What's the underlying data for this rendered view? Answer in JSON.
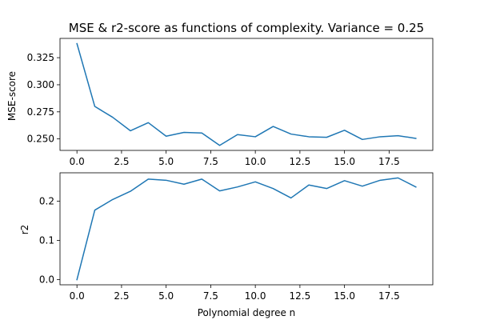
{
  "chart_data": [
    {
      "type": "line",
      "title": "MSE & r2-score as functions of complexity. Variance = 0.25",
      "xlabel": "",
      "ylabel": "MSE-score",
      "xlim": [
        -0.95,
        19.95
      ],
      "ylim": [
        0.2394,
        0.3428
      ],
      "xticks": [
        0.0,
        2.5,
        5.0,
        7.5,
        10.0,
        12.5,
        15.0,
        17.5
      ],
      "xtick_labels": [
        "0.0",
        "2.5",
        "5.0",
        "7.5",
        "10.0",
        "12.5",
        "15.0",
        "17.5"
      ],
      "yticks": [
        0.25,
        0.275,
        0.3,
        0.325
      ],
      "ytick_labels": [
        "0.250",
        "0.275",
        "0.300",
        "0.325"
      ],
      "grid": false,
      "color": "#1f77b4",
      "x": [
        0,
        1,
        2,
        3,
        4,
        5,
        6,
        7,
        8,
        9,
        10,
        11,
        12,
        13,
        14,
        15,
        16,
        17,
        18,
        19
      ],
      "y": [
        0.338,
        0.28,
        0.27,
        0.2575,
        0.265,
        0.2525,
        0.256,
        0.2555,
        0.244,
        0.254,
        0.252,
        0.2615,
        0.2545,
        0.252,
        0.2515,
        0.258,
        0.2495,
        0.252,
        0.253,
        0.2505
      ]
    },
    {
      "type": "line",
      "title": "",
      "xlabel": "Polynomial degree n",
      "ylabel": "r2",
      "xlim": [
        -0.95,
        19.95
      ],
      "ylim": [
        -0.013,
        0.272
      ],
      "xticks": [
        0.0,
        2.5,
        5.0,
        7.5,
        10.0,
        12.5,
        15.0,
        17.5
      ],
      "xtick_labels": [
        "0.0",
        "2.5",
        "5.0",
        "7.5",
        "10.0",
        "12.5",
        "15.0",
        "17.5"
      ],
      "yticks": [
        0.0,
        0.1,
        0.2
      ],
      "ytick_labels": [
        "0.0",
        "0.1",
        "0.2"
      ],
      "grid": false,
      "color": "#1f77b4",
      "x": [
        0,
        1,
        2,
        3,
        4,
        5,
        6,
        7,
        8,
        9,
        10,
        11,
        12,
        13,
        14,
        15,
        16,
        17,
        18,
        19
      ],
      "y": [
        0.0,
        0.177,
        0.204,
        0.225,
        0.256,
        0.253,
        0.243,
        0.256,
        0.226,
        0.236,
        0.249,
        0.232,
        0.208,
        0.241,
        0.232,
        0.252,
        0.238,
        0.253,
        0.259,
        0.236
      ]
    }
  ]
}
